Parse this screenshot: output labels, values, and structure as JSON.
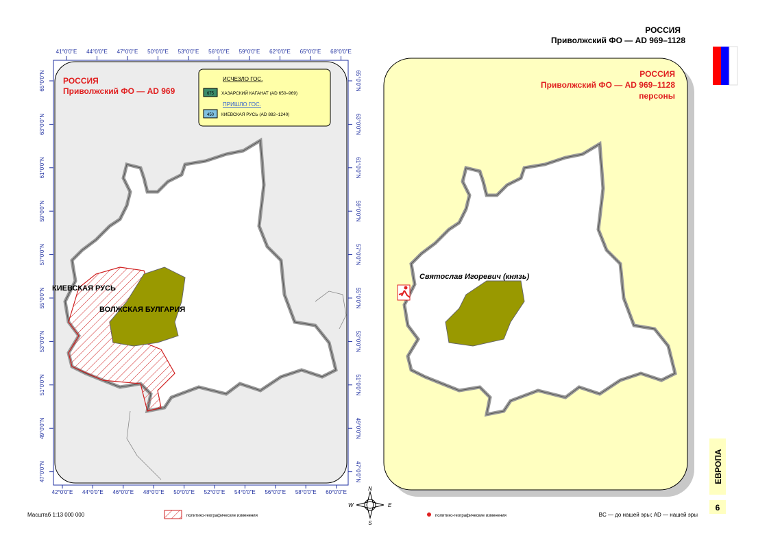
{
  "header": {
    "country": "РОССИЯ",
    "region": "Приволжский ФО — AD 969–1128"
  },
  "left_map": {
    "title": "РОССИЯ",
    "subtitle": "Приволжский ФО — AD 969",
    "legend": {
      "disappeared_heading": "ИСЧЕЗЛО ГОС.",
      "disappeared": [
        {
          "code": "675",
          "label": "ХАЗАРСКИЙ КАГАНАТ (AD 650–969)"
        }
      ],
      "appeared_heading": "ПРИШЛО ГОС.",
      "appeared": [
        {
          "code": "450",
          "label": "КИЕВСКАЯ РУСЬ (AD 882–1240)"
        }
      ]
    },
    "labels": [
      "КИЕВСКАЯ РУСЬ",
      "ВОЛЖСКАЯ БУЛГАРИЯ"
    ],
    "top_axis": [
      "41°0'0\"E",
      "44°0'0\"E",
      "47°0'0\"E",
      "50°0'0\"E",
      "53°0'0\"E",
      "56°0'0\"E",
      "59°0'0\"E",
      "62°0'0\"E",
      "65°0'0\"E",
      "68°0'0\"E"
    ],
    "bottom_axis": [
      "42°0'0\"E",
      "44°0'0\"E",
      "46°0'0\"E",
      "48°0'0\"E",
      "50°0'0\"E",
      "52°0'0\"E",
      "54°0'0\"E",
      "56°0'0\"E",
      "58°0'0\"E",
      "60°0'0\"E"
    ],
    "left_axis": [
      "65°0'0\"N",
      "63°0'0\"N",
      "61°0'0\"N",
      "59°0'0\"N",
      "57°0'0\"N",
      "55°0'0\"N",
      "53°0'0\"N",
      "51°0'0\"N",
      "49°0'0\"N",
      "47°0'0\"N"
    ],
    "right_axis": [
      "65°0'0\"N",
      "63°0'0\"N",
      "61°0'0\"N",
      "59°0'0\"N",
      "57°0'0\"N",
      "55°0'0\"N",
      "53°0'0\"N",
      "51°0'0\"N",
      "49°0'0\"N",
      "47°0'0\"N"
    ]
  },
  "right_map": {
    "title": "РОССИЯ",
    "subtitle": "Приволжский ФО — AD 969–1128",
    "category": "персоны",
    "person": "Святослав Игоревич (князь)"
  },
  "compass": [
    "N",
    "E",
    "S",
    "W"
  ],
  "footer": {
    "scale": "Масштаб 1:13 000 000",
    "legend_left": "политико-географические изменения",
    "legend_right": "политико-географические изменения",
    "note": "BC — до нашей эры; AD — нашей эры"
  },
  "side": {
    "continent": "ЕВРОПА",
    "page": "6"
  }
}
